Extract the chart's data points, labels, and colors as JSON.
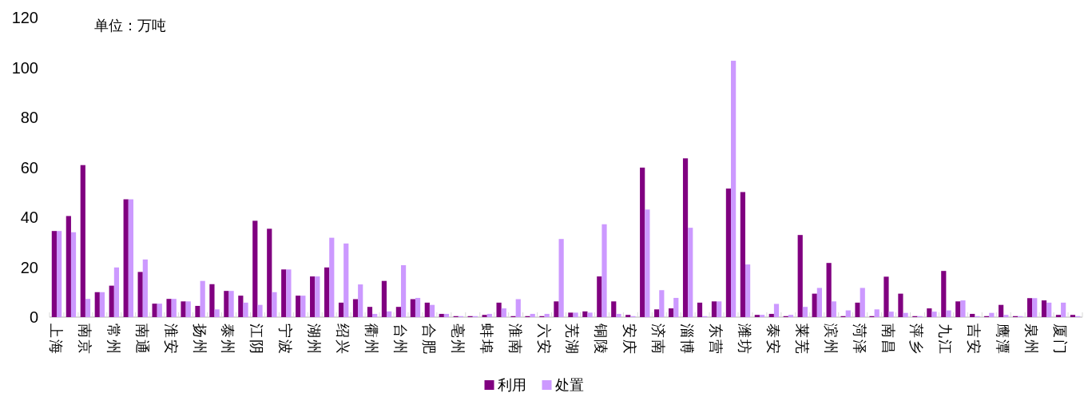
{
  "chart_data": {
    "type": "bar",
    "annotations": [
      "单位：万吨"
    ],
    "categories": [
      "上海",
      null,
      "南京",
      null,
      "常州",
      null,
      "南通",
      null,
      "淮安",
      null,
      "扬州",
      null,
      "泰州",
      null,
      "江阴",
      null,
      "宁波",
      null,
      "湖州",
      null,
      "绍兴",
      null,
      "衢州",
      null,
      "台州",
      null,
      "合肥",
      null,
      "亳州",
      null,
      "蚌埠",
      null,
      "淮南",
      null,
      "六安",
      null,
      "芜湖",
      null,
      "铜陵",
      null,
      "安庆",
      null,
      "济南",
      null,
      "淄博",
      null,
      "东营",
      null,
      "潍坊",
      null,
      "泰安",
      null,
      "莱芜",
      null,
      "滨州",
      null,
      "菏泽",
      null,
      "南昌",
      null,
      "萍乡",
      null,
      "九江",
      null,
      "吉安",
      null,
      "鹰潭",
      null,
      "泉州",
      null,
      "厦门",
      null
    ],
    "series": [
      {
        "name": "利用",
        "color": "#800080",
        "values": [
          34.5,
          40.5,
          60.9,
          10,
          12.6,
          47.2,
          18.1,
          5.4,
          7.3,
          6.3,
          4.5,
          13.2,
          10.5,
          8.6,
          38.6,
          35.4,
          19.1,
          8.6,
          16.3,
          19.9,
          5.8,
          7.2,
          4.1,
          14.5,
          4.1,
          7.2,
          5.8,
          1.3,
          0.4,
          0.4,
          0.9,
          5.8,
          0.4,
          0.4,
          0.4,
          6.3,
          1.8,
          2.3,
          16.3,
          6.3,
          0.9,
          59.9,
          3.1,
          3.5,
          63.6,
          5.8,
          6.3,
          51.5,
          50.1,
          0.9,
          1.3,
          0.4,
          32.9,
          9.4,
          21.7,
          0.4,
          5.8,
          0.4,
          16.2,
          9.4,
          0.4,
          3.5,
          18.5,
          6.3,
          1.3,
          0.4,
          4.9,
          0.4,
          7.6,
          6.7,
          0.9,
          0.9
        ]
      },
      {
        "name": "处置",
        "color": "#cc99ff",
        "values": [
          34.5,
          34,
          7.3,
          10,
          19.9,
          47.2,
          23.1,
          5.4,
          7.3,
          6.3,
          14.5,
          3.1,
          10.5,
          5.8,
          4.9,
          10,
          19.1,
          8.6,
          16.3,
          31.8,
          29.5,
          13.1,
          1.3,
          2.3,
          20.8,
          7.7,
          4.9,
          1.3,
          0.4,
          0.4,
          1.3,
          3.5,
          7.2,
          1.3,
          1.3,
          31.3,
          1.8,
          1.8,
          37.2,
          1.3,
          0.4,
          43.1,
          10.8,
          7.7,
          35.8,
          0.4,
          6.3,
          102.7,
          21.1,
          0.9,
          5.3,
          0.9,
          4.1,
          11.7,
          6.3,
          2.7,
          11.7,
          3.1,
          2.2,
          1.7,
          0.4,
          2.2,
          2.7,
          6.7,
          0.4,
          1.7,
          0.9,
          0.4,
          7.6,
          5.8,
          5.8,
          0.4
        ]
      }
    ],
    "ylim": [
      0,
      120
    ],
    "yticks": [
      0,
      20,
      40,
      60,
      80,
      100,
      120
    ],
    "grid": false,
    "legend": "bottom"
  }
}
